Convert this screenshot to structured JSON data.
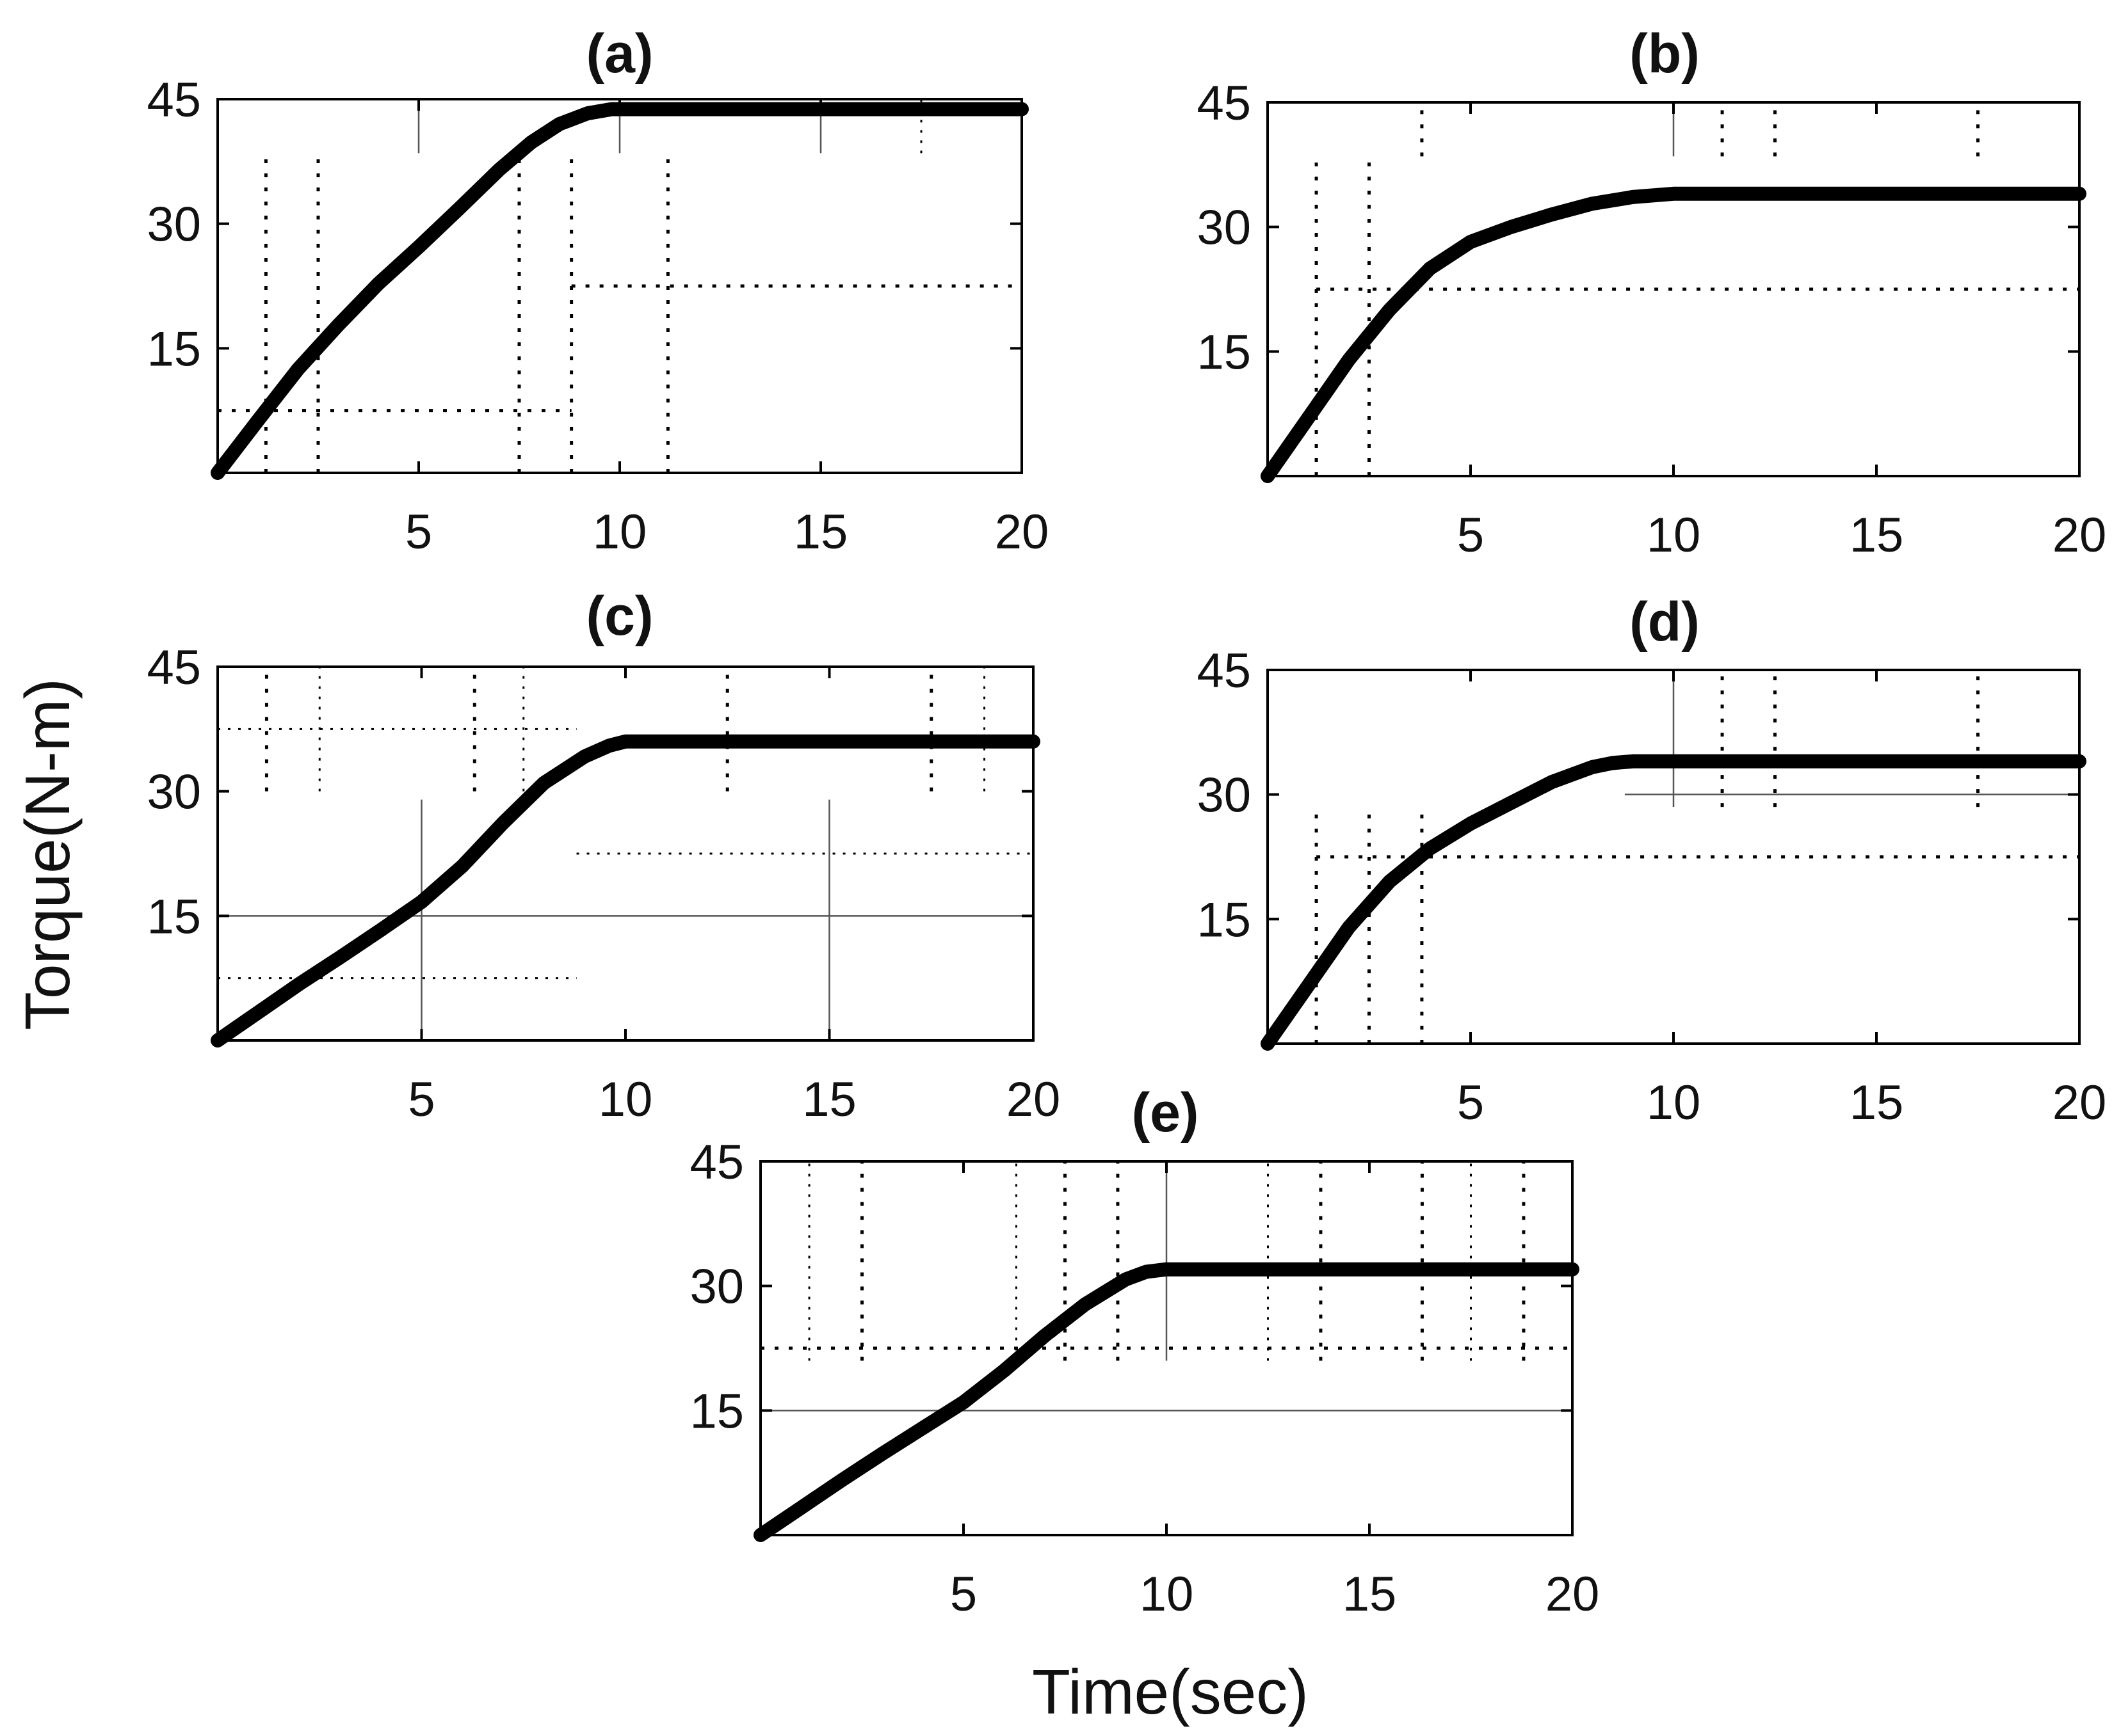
{
  "chart_data": [
    {
      "panel": "a",
      "type": "line",
      "title": "(a)",
      "x": [
        0,
        1,
        2,
        3,
        4,
        5,
        6,
        7,
        7.8,
        8.5,
        9.2,
        9.8,
        10,
        12,
        14,
        16,
        18,
        20
      ],
      "series": [
        {
          "name": "Torque",
          "values": [
            0,
            6.3,
            12.5,
            17.8,
            22.8,
            27.2,
            31.8,
            36.5,
            39.8,
            42.0,
            43.3,
            43.8,
            43.8,
            43.8,
            43.8,
            43.8,
            43.8,
            43.8
          ]
        }
      ],
      "xlim": [
        0,
        20
      ],
      "ylim": [
        0,
        45
      ],
      "xticks": [
        5,
        10,
        15,
        20
      ],
      "yticks": [
        15,
        30,
        45
      ],
      "xlabel": "",
      "ylabel": ""
    },
    {
      "panel": "b",
      "type": "line",
      "title": "(b)",
      "x": [
        0,
        0.5,
        1,
        2,
        3,
        4,
        5,
        6,
        7,
        8,
        9,
        10,
        12,
        14,
        16,
        18,
        20
      ],
      "series": [
        {
          "name": "Torque",
          "values": [
            0,
            3.5,
            7.0,
            14.0,
            20.0,
            25.0,
            28.2,
            30.0,
            31.5,
            32.8,
            33.6,
            34.0,
            34.0,
            34.0,
            34.0,
            34.0,
            34.0
          ]
        }
      ],
      "xlim": [
        0,
        20
      ],
      "ylim": [
        0,
        45
      ],
      "xticks": [
        5,
        10,
        15,
        20
      ],
      "yticks": [
        15,
        30,
        45
      ],
      "xlabel": "",
      "ylabel": ""
    },
    {
      "panel": "c",
      "type": "line",
      "title": "(c)",
      "x": [
        0,
        1,
        2,
        3,
        4,
        5,
        6,
        7,
        8,
        9,
        9.6,
        10,
        12,
        14,
        16,
        18,
        20
      ],
      "series": [
        {
          "name": "Torque",
          "values": [
            0,
            3.4,
            6.8,
            10.0,
            13.3,
            16.7,
            21.0,
            26.2,
            31.0,
            34.2,
            35.5,
            36.0,
            36.0,
            36.0,
            36.0,
            36.0,
            36.0
          ]
        }
      ],
      "xlim": [
        0,
        20
      ],
      "ylim": [
        0,
        45
      ],
      "xticks": [
        5,
        10,
        15,
        20
      ],
      "yticks": [
        15,
        30,
        45
      ],
      "xlabel": "",
      "ylabel": "Torque(N-m)"
    },
    {
      "panel": "d",
      "type": "line",
      "title": "(d)",
      "x": [
        0,
        1,
        2,
        3,
        4,
        5,
        6,
        7,
        8,
        8.5,
        9,
        10,
        12,
        14,
        16,
        18,
        20
      ],
      "series": [
        {
          "name": "Torque",
          "values": [
            0,
            7.0,
            14.0,
            19.5,
            23.5,
            26.5,
            29.0,
            31.5,
            33.3,
            33.8,
            34.0,
            34.0,
            34.0,
            34.0,
            34.0,
            34.0,
            34.0
          ]
        }
      ],
      "xlim": [
        0,
        20
      ],
      "ylim": [
        0,
        45
      ],
      "xticks": [
        5,
        10,
        15,
        20
      ],
      "yticks": [
        15,
        30,
        45
      ],
      "xlabel": "",
      "ylabel": ""
    },
    {
      "panel": "e",
      "type": "line",
      "title": "(e)",
      "x": [
        0,
        1,
        2,
        3,
        4,
        5,
        6,
        7,
        8,
        9,
        9.5,
        10,
        12,
        14,
        16,
        18,
        20
      ],
      "series": [
        {
          "name": "Torque",
          "values": [
            0,
            3.3,
            6.6,
            9.8,
            12.9,
            16.0,
            19.8,
            24.0,
            27.8,
            30.8,
            31.7,
            32.0,
            32.0,
            32.0,
            32.0,
            32.0,
            32.0
          ]
        }
      ],
      "xlim": [
        0,
        20
      ],
      "ylim": [
        0,
        45
      ],
      "xticks": [
        5,
        10,
        15,
        20
      ],
      "yticks": [
        15,
        30,
        45
      ],
      "xlabel": "Time(sec)",
      "ylabel": ""
    }
  ],
  "reference_lines": {
    "a": [
      {
        "style": "dotted",
        "orient": "v",
        "at": 1.2,
        "from": 0,
        "to": 38.5
      },
      {
        "style": "dotted",
        "orient": "v",
        "at": 2.5,
        "from": 0,
        "to": 38.5
      },
      {
        "style": "dotted",
        "orient": "v",
        "at": 7.5,
        "from": 0,
        "to": 38.5
      },
      {
        "style": "dotted",
        "orient": "v",
        "at": 8.8,
        "from": 0,
        "to": 38.5
      },
      {
        "style": "dotted",
        "orient": "v",
        "at": 11.2,
        "from": 0,
        "to": 38.5
      },
      {
        "style": "dotted",
        "orient": "h",
        "at": 7.5,
        "from": 0,
        "to": 8.8
      },
      {
        "style": "dotted",
        "orient": "h",
        "at": 22.5,
        "from": 8.8,
        "to": 20
      },
      {
        "style": "solid",
        "orient": "v",
        "at": 5,
        "from": 38.5,
        "to": 45
      },
      {
        "style": "solid",
        "orient": "v",
        "at": 10,
        "from": 38.5,
        "to": 45
      },
      {
        "style": "solid",
        "orient": "v",
        "at": 15,
        "from": 38.5,
        "to": 45
      },
      {
        "style": "thin-dotted",
        "orient": "v",
        "at": 17.5,
        "from": 38.5,
        "to": 45
      }
    ],
    "b": [
      {
        "style": "dotted",
        "orient": "v",
        "at": 1.2,
        "from": 0,
        "to": 38.5
      },
      {
        "style": "dotted",
        "orient": "v",
        "at": 2.5,
        "from": 0,
        "to": 38.5
      },
      {
        "style": "dotted",
        "orient": "v",
        "at": 3.8,
        "from": 38.5,
        "to": 45
      },
      {
        "style": "solid",
        "orient": "v",
        "at": 10,
        "from": 38.5,
        "to": 45
      },
      {
        "style": "dotted",
        "orient": "v",
        "at": 11.2,
        "from": 38.5,
        "to": 45
      },
      {
        "style": "dotted",
        "orient": "v",
        "at": 12.5,
        "from": 38.5,
        "to": 45
      },
      {
        "style": "dotted",
        "orient": "v",
        "at": 17.5,
        "from": 38.5,
        "to": 45
      },
      {
        "style": "dotted",
        "orient": "h",
        "at": 22.5,
        "from": 1.2,
        "to": 20
      }
    ],
    "c": [
      {
        "style": "dotted",
        "orient": "v",
        "at": 1.2,
        "from": 30,
        "to": 45
      },
      {
        "style": "thin-dotted",
        "orient": "v",
        "at": 2.5,
        "from": 30,
        "to": 45
      },
      {
        "style": "dotted",
        "orient": "v",
        "at": 6.3,
        "from": 30,
        "to": 45
      },
      {
        "style": "thin-dotted",
        "orient": "v",
        "at": 7.5,
        "from": 30,
        "to": 45
      },
      {
        "style": "dotted",
        "orient": "v",
        "at": 12.5,
        "from": 30,
        "to": 45
      },
      {
        "style": "dotted",
        "orient": "v",
        "at": 17.5,
        "from": 30,
        "to": 45
      },
      {
        "style": "thin-dotted",
        "orient": "v",
        "at": 18.8,
        "from": 30,
        "to": 45
      },
      {
        "style": "thin-dotted",
        "orient": "h",
        "at": 37.5,
        "from": 0,
        "to": 8.8
      },
      {
        "style": "thin-dotted",
        "orient": "h",
        "at": 22.5,
        "from": 8.8,
        "to": 20
      },
      {
        "style": "thin-dotted",
        "orient": "h",
        "at": 7.5,
        "from": 0,
        "to": 8.8
      },
      {
        "style": "solid",
        "orient": "h",
        "at": 15,
        "from": 0,
        "to": 20
      },
      {
        "style": "solid",
        "orient": "v",
        "at": 5,
        "from": 0,
        "to": 29
      },
      {
        "style": "solid",
        "orient": "v",
        "at": 15,
        "from": 0,
        "to": 29
      }
    ],
    "d": [
      {
        "style": "dotted",
        "orient": "v",
        "at": 1.2,
        "from": 0,
        "to": 28.5
      },
      {
        "style": "dotted",
        "orient": "v",
        "at": 2.5,
        "from": 0,
        "to": 28.5
      },
      {
        "style": "dotted",
        "orient": "v",
        "at": 3.8,
        "from": 0,
        "to": 28.5
      },
      {
        "style": "solid",
        "orient": "v",
        "at": 10,
        "from": 28.5,
        "to": 45
      },
      {
        "style": "dotted",
        "orient": "v",
        "at": 11.2,
        "from": 28.5,
        "to": 45
      },
      {
        "style": "dotted",
        "orient": "v",
        "at": 12.5,
        "from": 28.5,
        "to": 45
      },
      {
        "style": "dotted",
        "orient": "v",
        "at": 17.5,
        "from": 28.5,
        "to": 45
      },
      {
        "style": "solid",
        "orient": "h",
        "at": 30,
        "from": 8.8,
        "to": 20
      },
      {
        "style": "dotted",
        "orient": "h",
        "at": 22.5,
        "from": 1.2,
        "to": 20
      }
    ],
    "e": [
      {
        "style": "thin-dotted",
        "orient": "v",
        "at": 1.2,
        "from": 21,
        "to": 45
      },
      {
        "style": "dotted",
        "orient": "v",
        "at": 2.5,
        "from": 21,
        "to": 45
      },
      {
        "style": "thin-dotted",
        "orient": "v",
        "at": 6.3,
        "from": 21,
        "to": 45
      },
      {
        "style": "dotted",
        "orient": "v",
        "at": 7.5,
        "from": 21,
        "to": 45
      },
      {
        "style": "dotted",
        "orient": "v",
        "at": 8.8,
        "from": 21,
        "to": 45
      },
      {
        "style": "solid",
        "orient": "v",
        "at": 10,
        "from": 21,
        "to": 45
      },
      {
        "style": "thin-dotted",
        "orient": "v",
        "at": 12.5,
        "from": 21,
        "to": 45
      },
      {
        "style": "dotted",
        "orient": "v",
        "at": 13.8,
        "from": 21,
        "to": 45
      },
      {
        "style": "dotted",
        "orient": "v",
        "at": 16.3,
        "from": 21,
        "to": 45
      },
      {
        "style": "thin-dotted",
        "orient": "v",
        "at": 17.5,
        "from": 21,
        "to": 45
      },
      {
        "style": "dotted",
        "orient": "v",
        "at": 18.8,
        "from": 21,
        "to": 45
      },
      {
        "style": "dotted",
        "orient": "h",
        "at": 22.5,
        "from": 0,
        "to": 20
      },
      {
        "style": "solid",
        "orient": "h",
        "at": 15,
        "from": 0,
        "to": 20
      }
    ]
  }
}
